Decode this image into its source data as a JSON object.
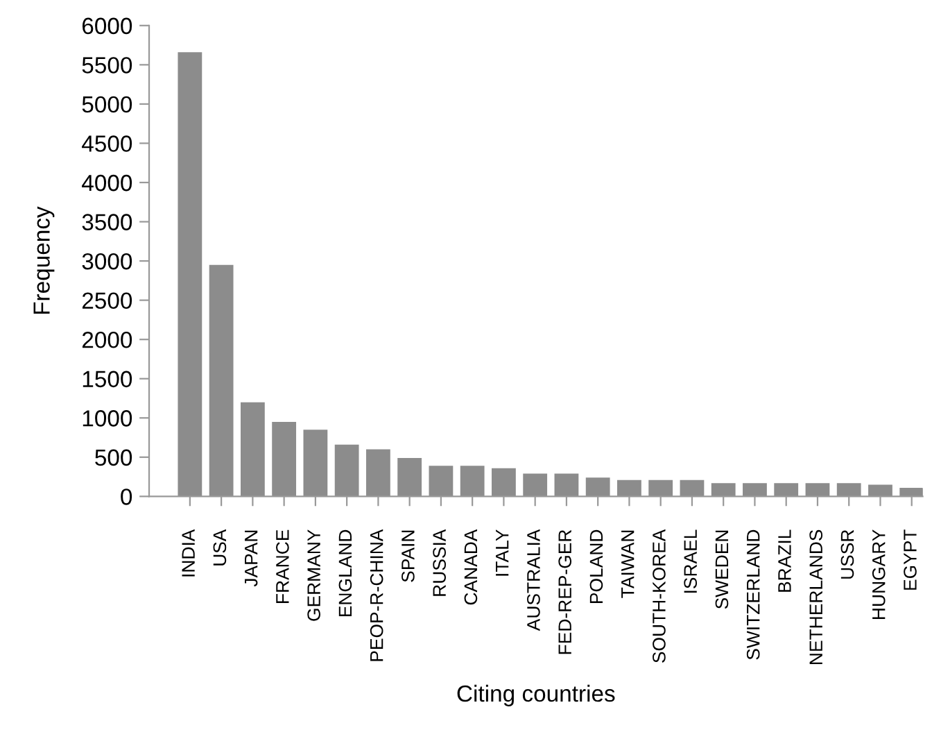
{
  "chart_data": {
    "type": "bar",
    "xlabel": "Citing countries",
    "ylabel": "Frequency",
    "categories": [
      "INDIA",
      "USA",
      "JAPAN",
      "FRANCE",
      "GERMANY",
      "ENGLAND",
      "PEOP-R-CHINA",
      "SPAIN",
      "RUSSIA",
      "CANADA",
      "ITALY",
      "AUSTRALIA",
      "FED-REP-GER",
      "POLAND",
      "TAIWAN",
      "SOUTH-KOREA",
      "ISRAEL",
      "SWEDEN",
      "SWITZERLAND",
      "BRAZIL",
      "NETHERLANDS",
      "USSR",
      "HUNGARY",
      "EGYPT"
    ],
    "values": [
      5650,
      2940,
      1190,
      940,
      840,
      650,
      590,
      480,
      380,
      380,
      350,
      280,
      280,
      230,
      200,
      200,
      200,
      160,
      160,
      160,
      160,
      160,
      140,
      100
    ],
    "color": "#8c8c8c",
    "ylim": [
      0,
      6000
    ],
    "yticks": [
      0,
      500,
      1000,
      1500,
      2000,
      2500,
      3000,
      3500,
      4000,
      4500,
      5000,
      5500,
      6000
    ],
    "grid": false,
    "legend": false
  }
}
